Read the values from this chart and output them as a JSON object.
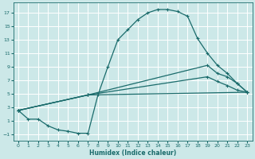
{
  "xlabel": "Humidex (Indice chaleur)",
  "bg_color": "#cce8e8",
  "grid_color": "#ffffff",
  "line_color": "#1a6b6b",
  "xlim": [
    -0.5,
    23.5
  ],
  "ylim": [
    -2,
    18.5
  ],
  "xticks": [
    0,
    1,
    2,
    3,
    4,
    5,
    6,
    7,
    8,
    9,
    10,
    11,
    12,
    13,
    14,
    15,
    16,
    17,
    18,
    19,
    20,
    21,
    22,
    23
  ],
  "yticks": [
    -1,
    1,
    3,
    5,
    7,
    9,
    11,
    13,
    15,
    17
  ],
  "curve1_x": [
    0,
    1,
    2,
    3,
    4,
    5,
    6,
    7,
    8,
    9,
    10,
    11,
    12,
    13,
    14,
    15,
    16,
    17,
    18,
    19,
    20,
    21,
    22,
    23
  ],
  "curve1_y": [
    2.5,
    1.2,
    1.2,
    0.2,
    -0.4,
    -0.6,
    -0.9,
    -0.9,
    4.8,
    9.0,
    13.0,
    14.5,
    16.0,
    17.0,
    17.5,
    17.5,
    17.2,
    16.5,
    13.2,
    11.0,
    9.2,
    8.0,
    6.5,
    5.2
  ],
  "curve2_x": [
    0,
    7,
    19,
    20,
    21,
    22,
    23
  ],
  "curve2_y": [
    2.5,
    4.8,
    9.2,
    8.0,
    7.5,
    6.5,
    5.2
  ],
  "curve3_x": [
    0,
    7,
    19,
    20,
    21,
    22,
    23
  ],
  "curve3_y": [
    2.5,
    4.8,
    7.5,
    6.8,
    6.2,
    5.5,
    5.2
  ],
  "curve4_x": [
    0,
    7,
    23
  ],
  "curve4_y": [
    2.5,
    4.8,
    5.2
  ]
}
